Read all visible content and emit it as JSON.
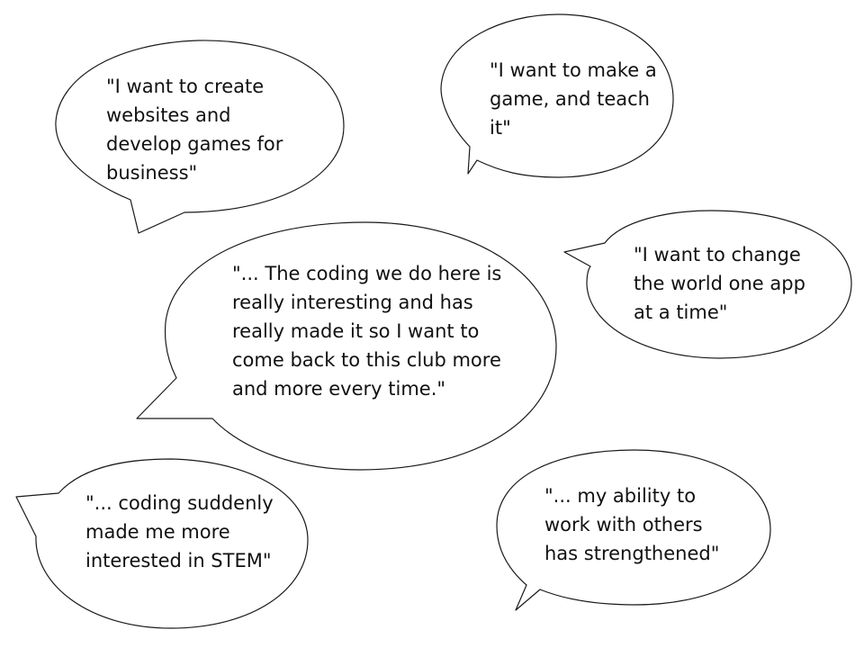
{
  "quotes": [
    {
      "id": "q1",
      "text": "\"I want to create websites and develop games for business\""
    },
    {
      "id": "q2",
      "text": "\"I want to make a game, and teach it\""
    },
    {
      "id": "q3",
      "text": "\"I want to change the world one app at a time\""
    },
    {
      "id": "q4",
      "text": "\"... The coding we do here is really interesting and has really made it so I want to come back to this club more and more every time.\""
    },
    {
      "id": "q5",
      "text": "\"... coding suddenly made me more interested in STEM\""
    },
    {
      "id": "q6",
      "text": "\"... my ability to work with others has strengthened\""
    }
  ],
  "colors": {
    "background": "#ffffff",
    "stroke": "#1a1a1a",
    "text": "#111111"
  }
}
